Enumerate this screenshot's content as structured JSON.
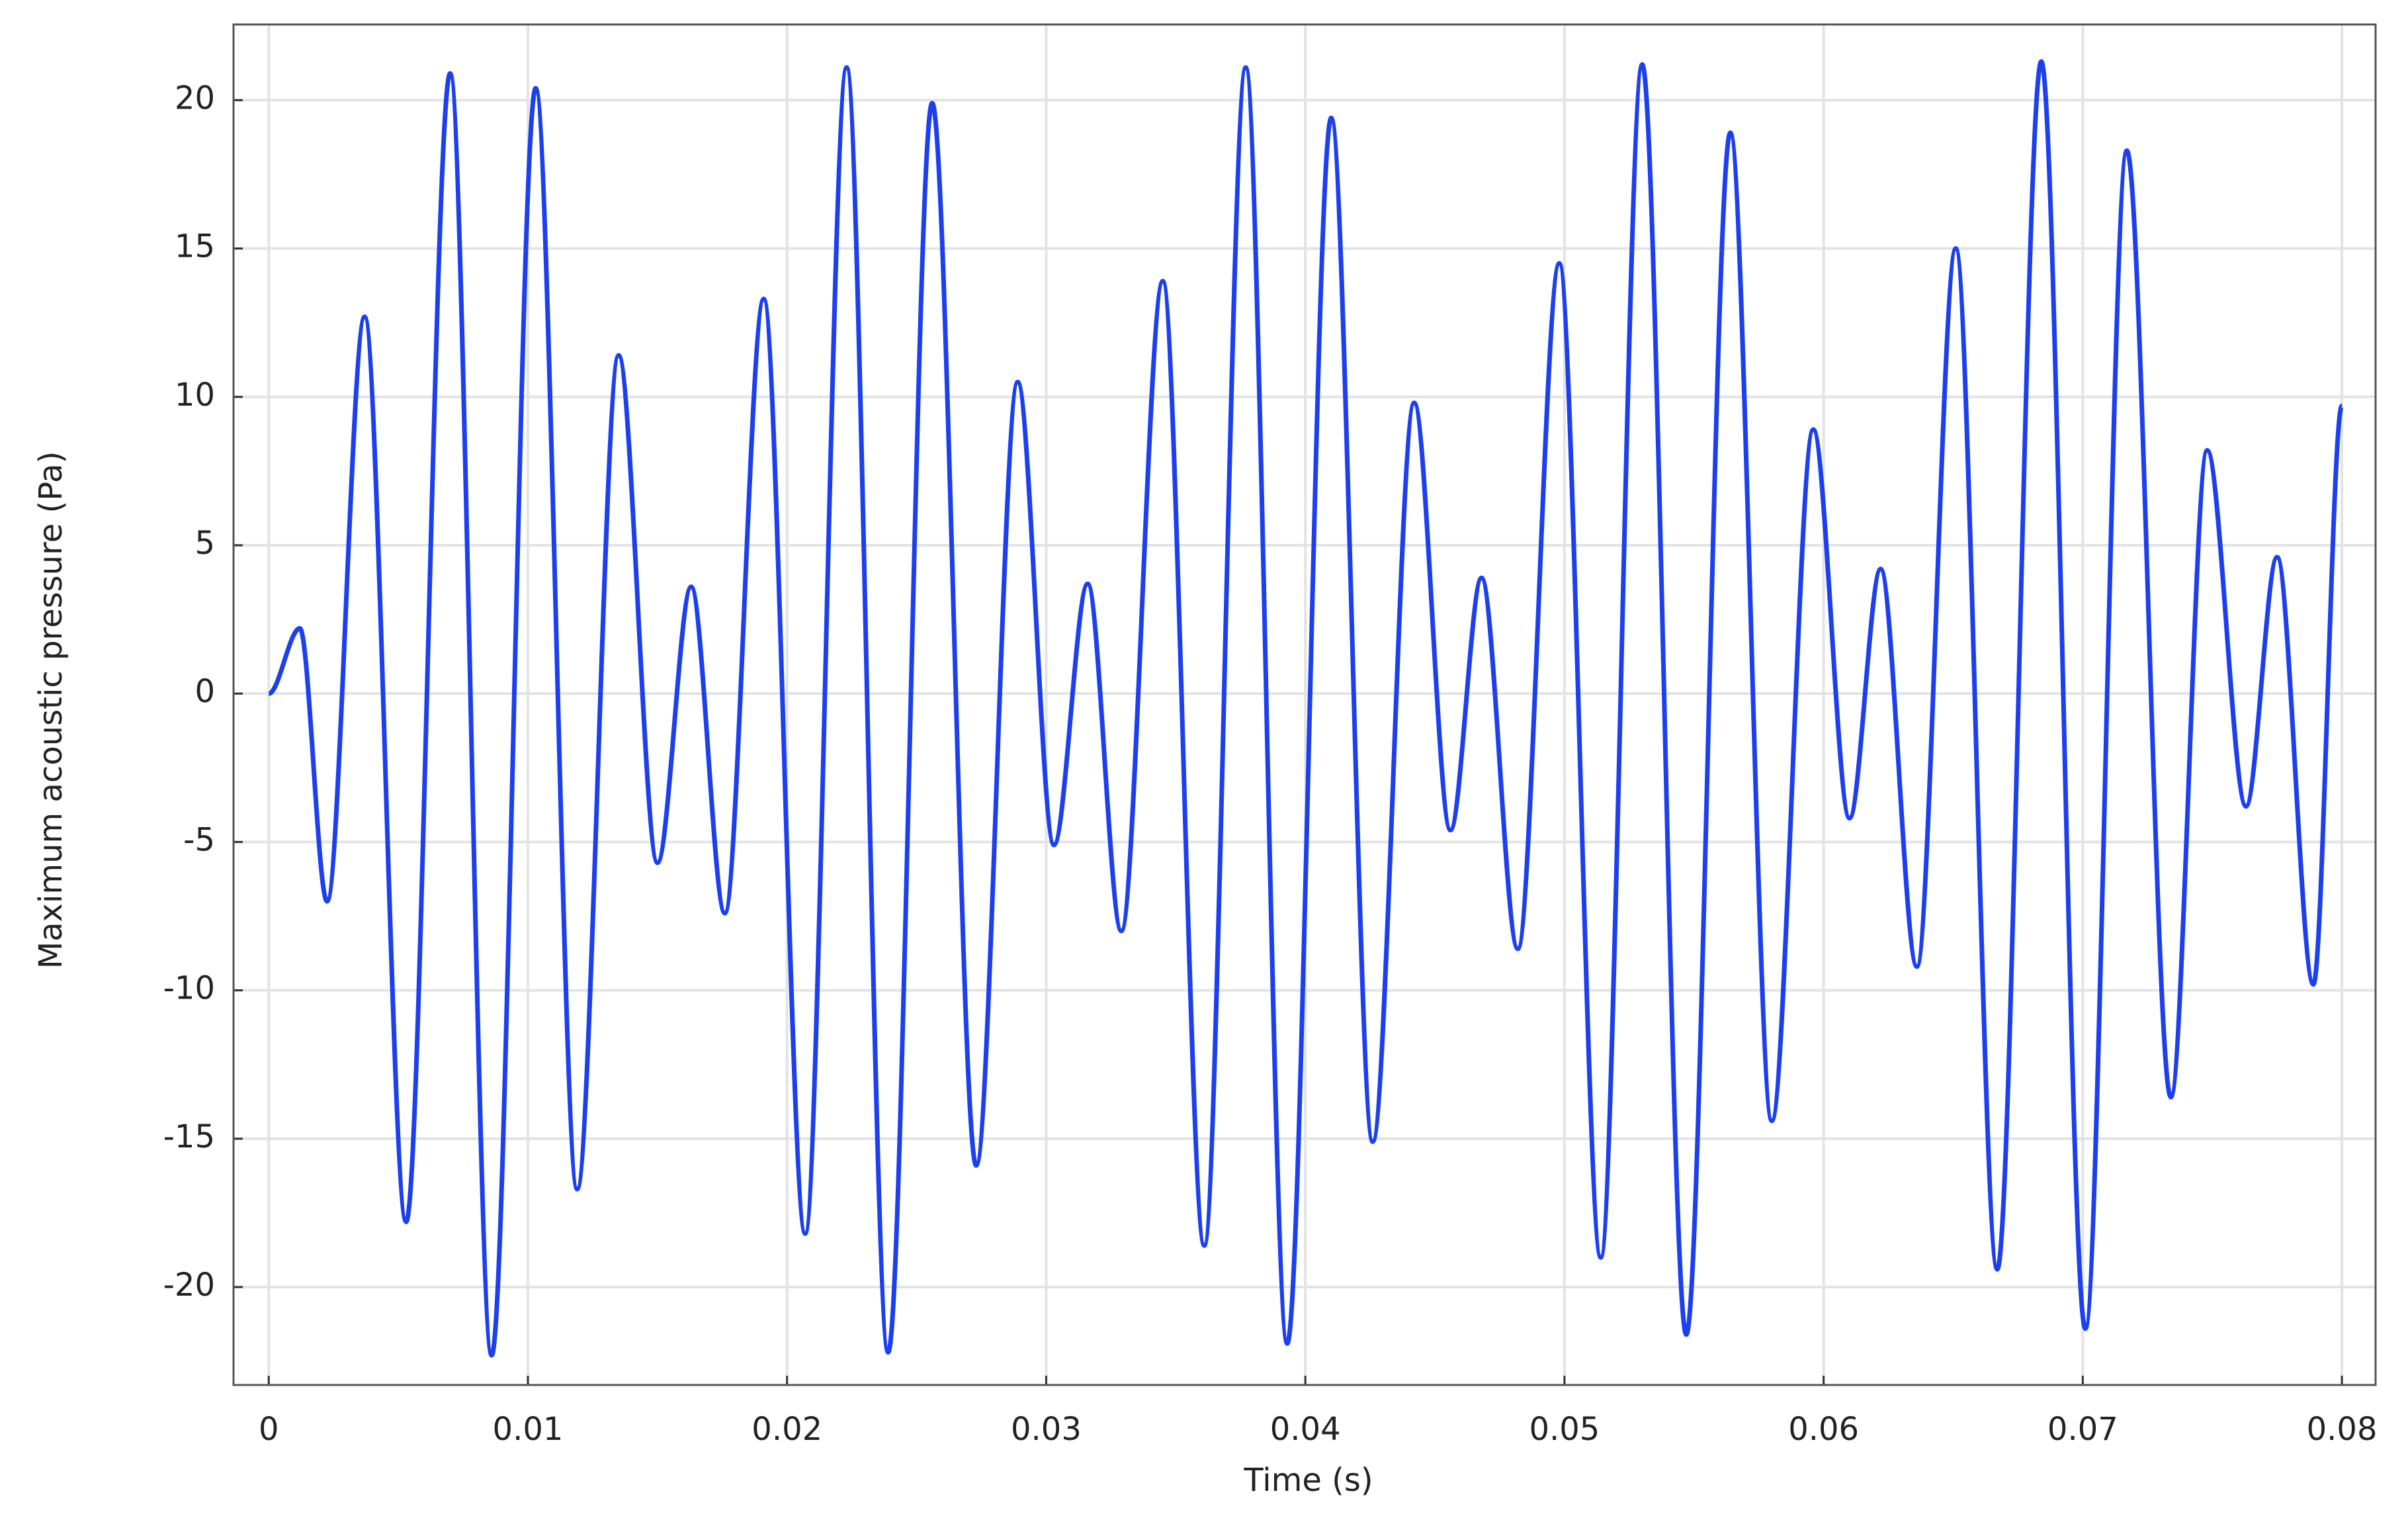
{
  "chart_data": {
    "type": "line",
    "xlabel": "Time (s)",
    "ylabel": "Maximum acoustic pressure (Pa)",
    "x": [
      0,
      0.0012,
      0.00225,
      0.0037,
      0.0053,
      0.007,
      0.0086,
      0.0103,
      0.0119,
      0.0135,
      0.015,
      0.0163,
      0.0176,
      0.0191,
      0.0207,
      0.0223,
      0.0239,
      0.0256,
      0.0273,
      0.0289,
      0.0303,
      0.0316,
      0.0329,
      0.0345,
      0.0361,
      0.0377,
      0.0393,
      0.041,
      0.0426,
      0.0442,
      0.0456,
      0.0468,
      0.0482,
      0.0498,
      0.0514,
      0.053,
      0.0547,
      0.0564,
      0.058,
      0.0596,
      0.061,
      0.0622,
      0.0636,
      0.0651,
      0.0667,
      0.0684,
      0.0701,
      0.0717,
      0.0734,
      0.0748,
      0.0763,
      0.0775,
      0.0789,
      0.08
    ],
    "series": [
      {
        "name": "Maximum acoustic pressure",
        "color": "#1c3ff0",
        "values": [
          0,
          2.2,
          -7.0,
          12.7,
          -17.8,
          20.9,
          -22.3,
          20.4,
          -16.7,
          11.4,
          -5.7,
          3.6,
          -7.4,
          13.3,
          -18.2,
          21.1,
          -22.2,
          19.9,
          -15.9,
          10.5,
          -5.1,
          3.7,
          -8.0,
          13.9,
          -18.6,
          21.1,
          -21.9,
          19.4,
          -15.1,
          9.8,
          -4.6,
          3.9,
          -8.6,
          14.5,
          -19.0,
          21.2,
          -21.6,
          18.9,
          -14.4,
          8.9,
          -4.2,
          4.2,
          -9.2,
          15.0,
          -19.4,
          21.3,
          -21.4,
          18.3,
          -13.6,
          8.2,
          -3.8,
          4.6,
          -9.8,
          9.7
        ]
      }
    ],
    "xlim": [
      -0.00136,
      0.0813
    ],
    "ylim": [
      -23.3,
      22.55
    ],
    "xticks": [
      0,
      0.01,
      0.02,
      0.03,
      0.04,
      0.05,
      0.06,
      0.07,
      0.08
    ],
    "yticks": [
      -20,
      -15,
      -10,
      -5,
      0,
      5,
      10,
      15,
      20
    ],
    "grid": true
  }
}
